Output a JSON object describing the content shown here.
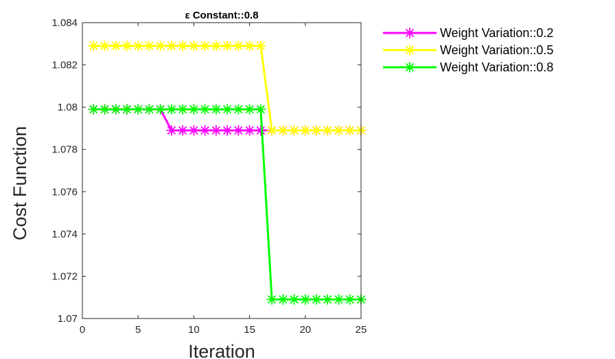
{
  "chart_data": {
    "type": "line",
    "title": "ε Constant::0.8",
    "xlabel": "Iteration",
    "ylabel": "Cost Function",
    "xlim": [
      0,
      25
    ],
    "ylim": [
      1.07,
      1.084
    ],
    "xticks": [
      0,
      5,
      10,
      15,
      20,
      25
    ],
    "yticks": [
      1.07,
      1.072,
      1.074,
      1.076,
      1.078,
      1.08,
      1.082,
      1.084
    ],
    "ytick_labels": [
      "1.07",
      "1.072",
      "1.074",
      "1.076",
      "1.078",
      "1.08",
      "1.082",
      "1.084"
    ],
    "grid": false,
    "legend_position": "outside-top-right",
    "x": [
      1,
      2,
      3,
      4,
      5,
      6,
      7,
      8,
      9,
      10,
      11,
      12,
      13,
      14,
      15,
      16,
      17,
      18,
      19,
      20,
      21,
      22,
      23,
      24,
      25
    ],
    "series": [
      {
        "name": "Weight Variation::0.2",
        "color": "#ff00ff",
        "marker": "asterisk",
        "values": [
          1.0799,
          1.0799,
          1.0799,
          1.0799,
          1.0799,
          1.0799,
          1.0799,
          1.0789,
          1.0789,
          1.0789,
          1.0789,
          1.0789,
          1.0789,
          1.0789,
          1.0789,
          1.0789,
          1.0789,
          1.0789,
          1.0789,
          1.0789,
          1.0789,
          1.0789,
          1.0789,
          1.0789,
          1.0789
        ]
      },
      {
        "name": "Weight Variation::0.5",
        "color": "#ffff00",
        "marker": "asterisk",
        "values": [
          1.0829,
          1.0829,
          1.0829,
          1.0829,
          1.0829,
          1.0829,
          1.0829,
          1.0829,
          1.0829,
          1.0829,
          1.0829,
          1.0829,
          1.0829,
          1.0829,
          1.0829,
          1.0829,
          1.0789,
          1.0789,
          1.0789,
          1.0789,
          1.0789,
          1.0789,
          1.0789,
          1.0789,
          1.0789
        ]
      },
      {
        "name": "Weight Variation::0.8",
        "color": "#00ff00",
        "marker": "asterisk",
        "values": [
          1.0799,
          1.0799,
          1.0799,
          1.0799,
          1.0799,
          1.0799,
          1.0799,
          1.0799,
          1.0799,
          1.0799,
          1.0799,
          1.0799,
          1.0799,
          1.0799,
          1.0799,
          1.0799,
          1.0709,
          1.0709,
          1.0709,
          1.0709,
          1.0709,
          1.0709,
          1.0709,
          1.0709,
          1.0709
        ]
      }
    ]
  }
}
